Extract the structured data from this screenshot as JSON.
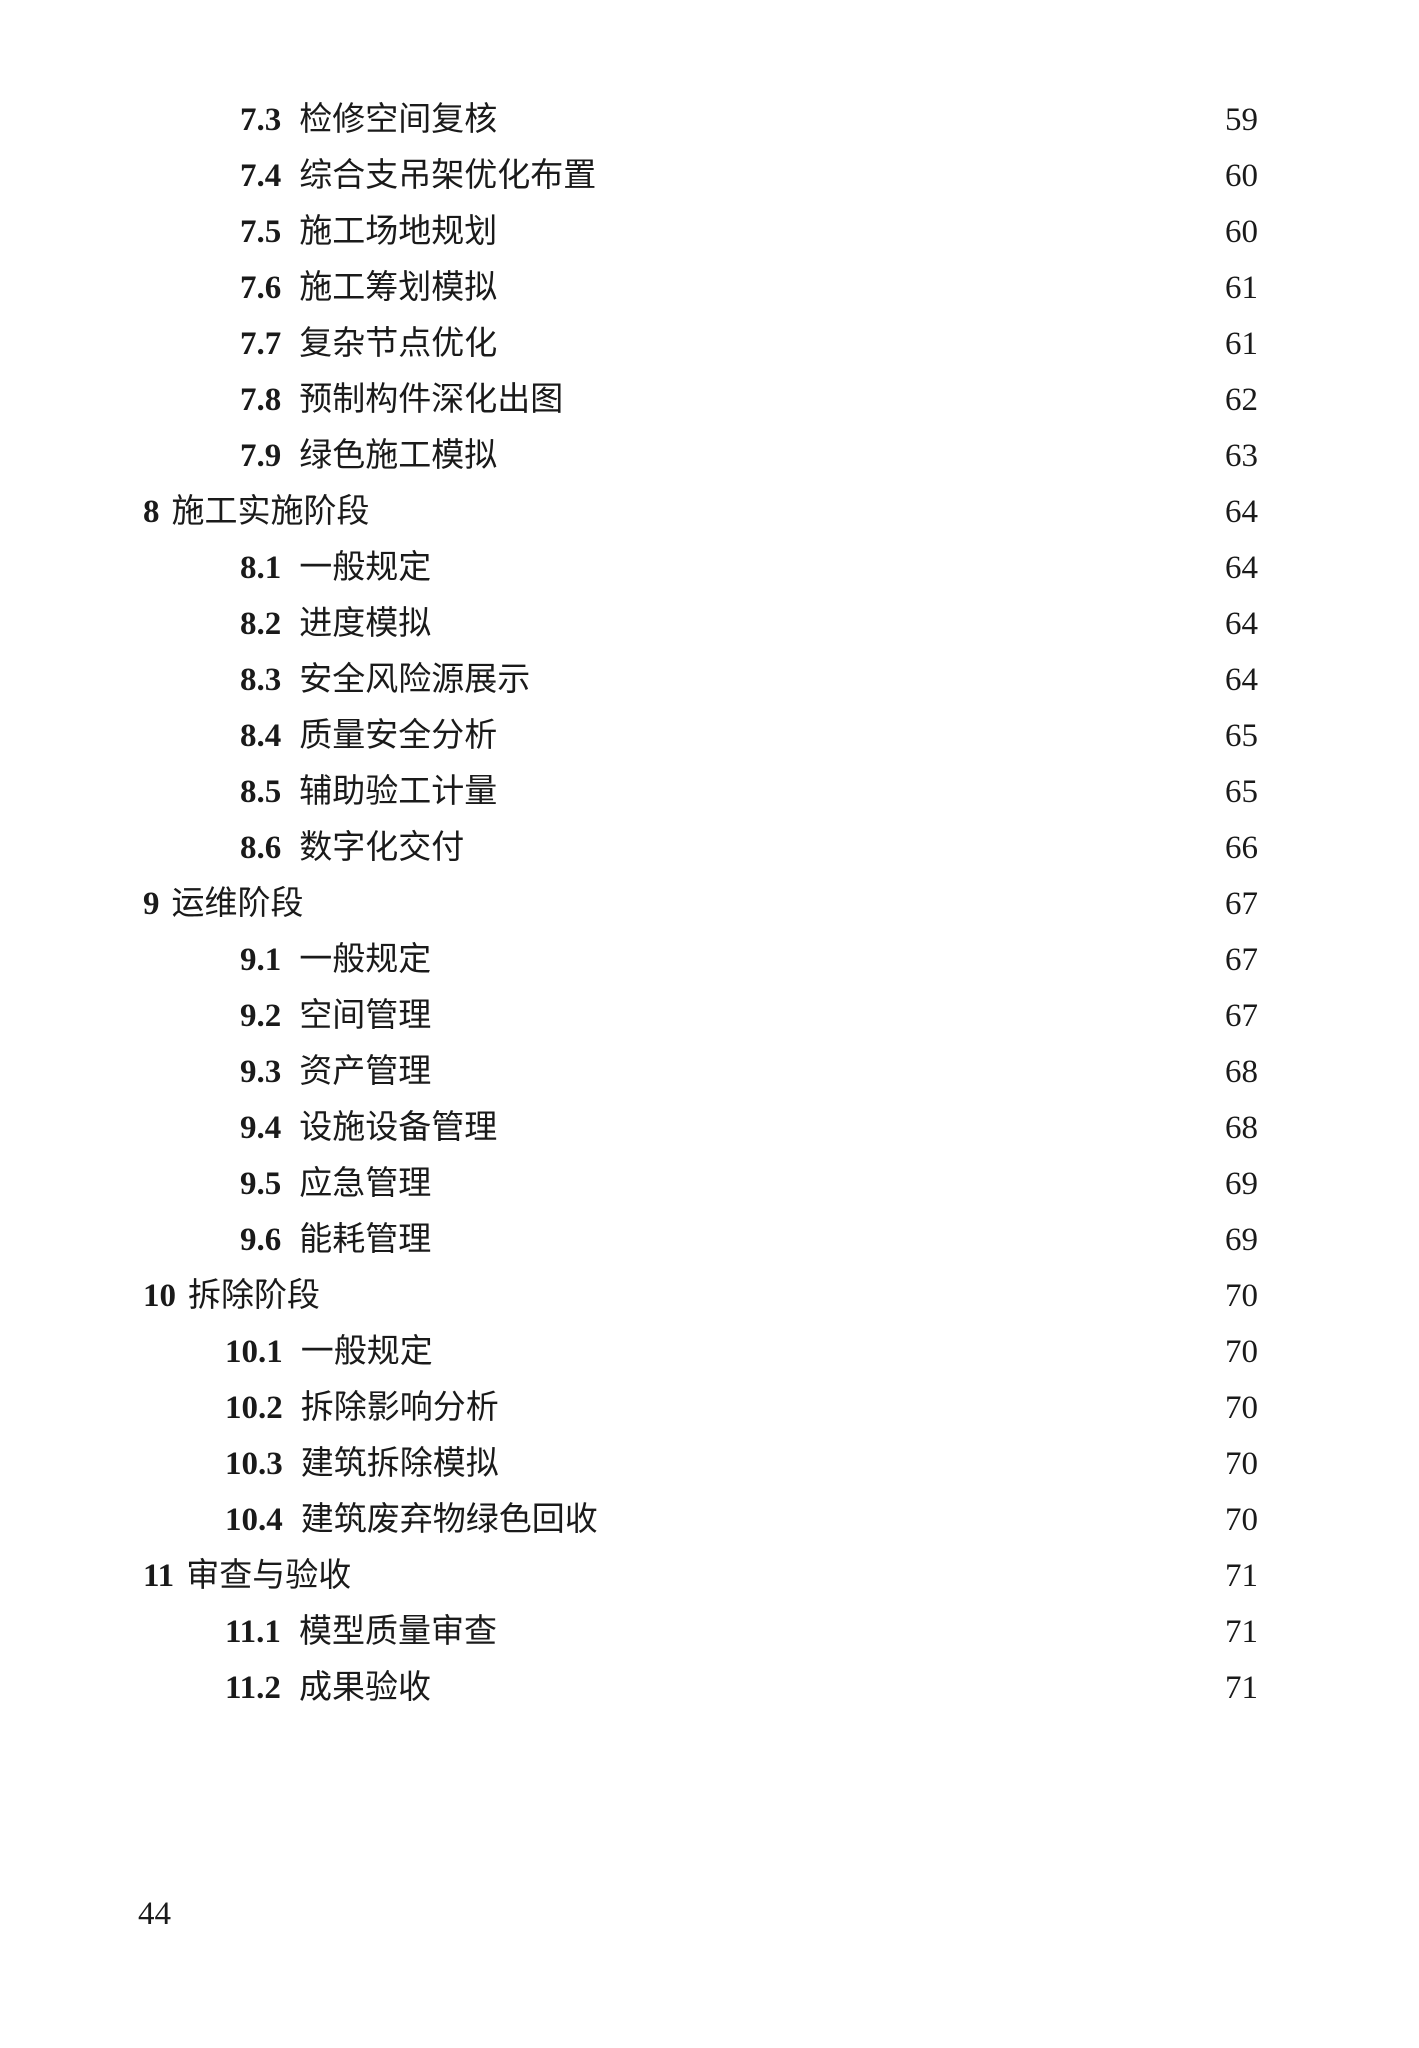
{
  "page_number": "44",
  "entries": [
    {
      "indent": "sub1",
      "num": "7.3",
      "title": "检修空间复核",
      "page": "59"
    },
    {
      "indent": "sub1",
      "num": "7.4",
      "title": "综合支吊架优化布置",
      "page": "60"
    },
    {
      "indent": "sub1",
      "num": "7.5",
      "title": "施工场地规划",
      "page": "60"
    },
    {
      "indent": "sub1",
      "num": "7.6",
      "title": "施工筹划模拟",
      "page": "61"
    },
    {
      "indent": "sub1",
      "num": "7.7",
      "title": "复杂节点优化",
      "page": "61"
    },
    {
      "indent": "sub1",
      "num": "7.8",
      "title": "预制构件深化出图",
      "page": "62"
    },
    {
      "indent": "sub1",
      "num": "7.9",
      "title": "绿色施工模拟",
      "page": "63"
    },
    {
      "indent": "top",
      "num": "8",
      "title": "施工实施阶段",
      "page": "64"
    },
    {
      "indent": "sub1",
      "num": "8.1",
      "title": "一般规定",
      "page": "64"
    },
    {
      "indent": "sub1",
      "num": "8.2",
      "title": "进度模拟",
      "page": "64"
    },
    {
      "indent": "sub1",
      "num": "8.3",
      "title": "安全风险源展示",
      "page": "64"
    },
    {
      "indent": "sub1",
      "num": "8.4",
      "title": "质量安全分析",
      "page": "65"
    },
    {
      "indent": "sub1",
      "num": "8.5",
      "title": "辅助验工计量",
      "page": "65"
    },
    {
      "indent": "sub1",
      "num": "8.6",
      "title": "数字化交付",
      "page": "66"
    },
    {
      "indent": "top",
      "num": "9",
      "title": "运维阶段",
      "page": "67"
    },
    {
      "indent": "sub1",
      "num": "9.1",
      "title": "一般规定",
      "page": "67"
    },
    {
      "indent": "sub1",
      "num": "9.2",
      "title": "空间管理",
      "page": "67"
    },
    {
      "indent": "sub1",
      "num": "9.3",
      "title": "资产管理",
      "page": "68"
    },
    {
      "indent": "sub1",
      "num": "9.4",
      "title": "设施设备管理",
      "page": "68"
    },
    {
      "indent": "sub1",
      "num": "9.5",
      "title": "应急管理",
      "page": "69"
    },
    {
      "indent": "sub1",
      "num": "9.6",
      "title": "能耗管理",
      "page": "69"
    },
    {
      "indent": "top",
      "num": "10",
      "title": "拆除阶段",
      "page": "70"
    },
    {
      "indent": "sub2",
      "num": "10.1",
      "title": "一般规定",
      "page": "70"
    },
    {
      "indent": "sub2",
      "num": "10.2",
      "title": "拆除影响分析",
      "page": "70"
    },
    {
      "indent": "sub2",
      "num": "10.3",
      "title": "建筑拆除模拟",
      "page": "70"
    },
    {
      "indent": "sub2",
      "num": "10.4",
      "title": "建筑废弃物绿色回收",
      "page": "70"
    },
    {
      "indent": "top",
      "num": "11",
      "title": "审查与验收",
      "page": "71"
    },
    {
      "indent": "sub2",
      "num": "11.1",
      "title": "模型质量审查",
      "page": "71"
    },
    {
      "indent": "sub2",
      "num": "11.2",
      "title": "成果验收",
      "page": "71"
    }
  ]
}
